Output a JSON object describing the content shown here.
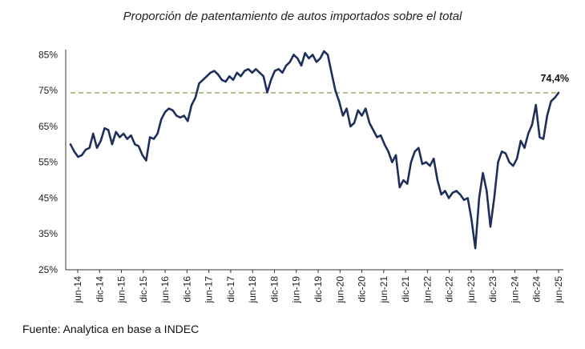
{
  "title": "Proporción de patentamiento de autos importados sobre el total",
  "source": "Fuente: Analytica en base a INDEC",
  "colors": {
    "line": "#1f2f5c",
    "reference": "#b7b98a",
    "axis": "#333333",
    "text": "#222222"
  },
  "chart_data": {
    "type": "line",
    "title": "Proporción de patentamiento de autos importados sobre el total",
    "xlabel": "",
    "ylabel": "",
    "ylim": [
      25,
      88
    ],
    "yticks": [
      25,
      35,
      45,
      55,
      65,
      75,
      85
    ],
    "ytick_labels": [
      "25%",
      "35%",
      "45%",
      "55%",
      "65%",
      "75%",
      "85%"
    ],
    "xtick_labels": [
      "jun-14",
      "dic-14",
      "jun-15",
      "dic-15",
      "jun-16",
      "dic-16",
      "jun-17",
      "dic-17",
      "jun-18",
      "dic-18",
      "jun-19",
      "dic-19",
      "jun-20",
      "dic-20",
      "jun-21",
      "dic-21",
      "jun-22",
      "dic-22",
      "jun-23",
      "dic-23",
      "jun-24",
      "dic-24",
      "jun-25"
    ],
    "reference_line": {
      "value": 74.4,
      "label": "74,4%",
      "style": "dashed"
    },
    "grid": false,
    "legend": "none",
    "series": [
      {
        "values": [
          60,
          58,
          56.5,
          57,
          58.5,
          59,
          63,
          59,
          61,
          64.5,
          64,
          60,
          63.5,
          62,
          63,
          61.5,
          62.5,
          60,
          59.5,
          57,
          55.5,
          62,
          61.5,
          63,
          67,
          69,
          70,
          69.5,
          68,
          67.5,
          68,
          66.5,
          71,
          73,
          77,
          78,
          79,
          80,
          80.5,
          79.5,
          78,
          77.5,
          79,
          78,
          80,
          79,
          80.5,
          81,
          80,
          81,
          80,
          79,
          74.5,
          78,
          80.5,
          81,
          80,
          82,
          83,
          85,
          84,
          82,
          85.5,
          84,
          85,
          83,
          84,
          86,
          85,
          80,
          75,
          72,
          68,
          70,
          65,
          66,
          69.5,
          68,
          70,
          66,
          64,
          62,
          62.5,
          60,
          58,
          55,
          57,
          48,
          50,
          49,
          55,
          58,
          59,
          54.5,
          55,
          54,
          56,
          50,
          46,
          47,
          45,
          46.5,
          47,
          46,
          44.5,
          45,
          39,
          31,
          45,
          52,
          47,
          37,
          45,
          55,
          58,
          57.5,
          55,
          54,
          56,
          61,
          59,
          63,
          65.5,
          71,
          62,
          61.5,
          68,
          72,
          73,
          74.4
        ]
      }
    ]
  }
}
